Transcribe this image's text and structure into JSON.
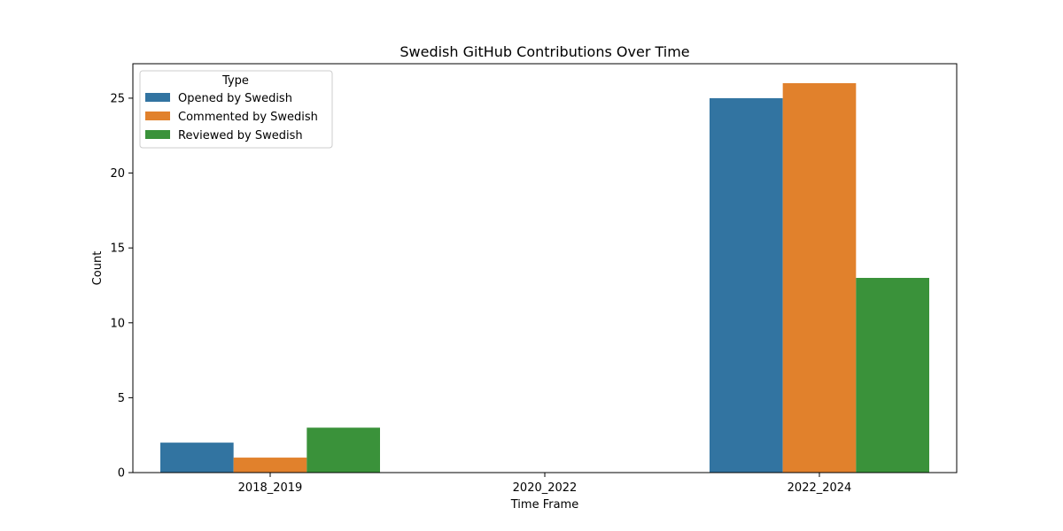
{
  "chart_data": {
    "type": "bar",
    "title": "Swedish GitHub Contributions Over Time",
    "xlabel": "Time Frame",
    "ylabel": "Count",
    "categories": [
      "2018_2019",
      "2020_2022",
      "2022_2024"
    ],
    "series": [
      {
        "name": "Opened by Swedish",
        "color": "#3274a1",
        "values": [
          2,
          0,
          25
        ]
      },
      {
        "name": "Commented by Swedish",
        "color": "#e1812c",
        "values": [
          1,
          0,
          26
        ]
      },
      {
        "name": "Reviewed by Swedish",
        "color": "#3a923a",
        "values": [
          3,
          0,
          13
        ]
      }
    ],
    "ylim": [
      0,
      27.3
    ],
    "yticks": [
      "0",
      "5",
      "10",
      "15",
      "20",
      "25"
    ],
    "legend": {
      "title": "Type",
      "position": "top-left"
    },
    "grid": false
  }
}
